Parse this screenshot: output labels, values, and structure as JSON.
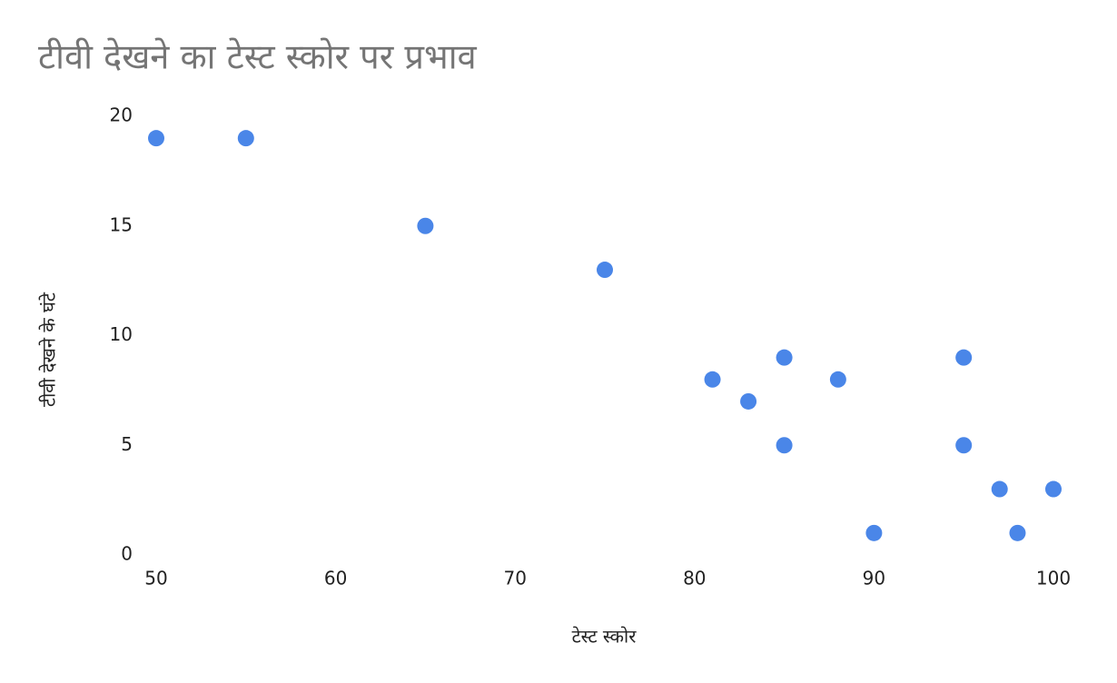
{
  "chart_data": {
    "type": "scatter",
    "title": "टीवी देखने का टेस्ट स्कोर पर प्रभाव",
    "x_label": "टेस्ट स्कोर",
    "y_label": "टीवी देखने के घंटे",
    "x": [
      50,
      55,
      65,
      75,
      81,
      83,
      85,
      85,
      88,
      90,
      95,
      95,
      97,
      98,
      100
    ],
    "values": [
      19,
      19,
      15,
      13,
      8,
      7,
      9,
      5,
      8,
      1,
      9,
      5,
      3,
      1,
      3
    ],
    "color": "#4a86e8",
    "xlim": [
      50,
      100
    ],
    "xticks": [
      50,
      60,
      70,
      80,
      90,
      100
    ],
    "ylim": [
      0,
      20
    ],
    "yticks": [
      0,
      5,
      10,
      15,
      20
    ],
    "grid": false
  }
}
